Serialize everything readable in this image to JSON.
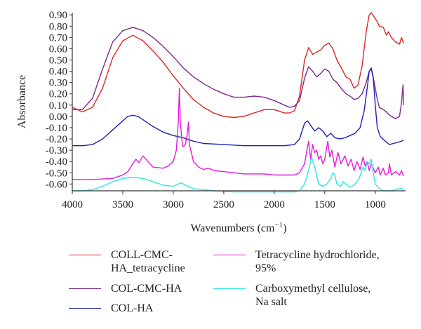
{
  "chart_data": {
    "type": "line",
    "title": "",
    "xlabel": "Wavenumbers (cm",
    "xlabel_sup": "−1",
    "xlabel_close": ")",
    "ylabel": "Absorbance",
    "xlim": [
      4000,
      700
    ],
    "x_reversed": true,
    "ylim": [
      -0.66,
      0.92
    ],
    "grid": false,
    "legend_position": "bottom",
    "x_ticks": [
      "4000",
      "3500",
      "3000",
      "2500",
      "2000",
      "1500",
      "1000"
    ],
    "x_tick_values": [
      4000,
      3500,
      3000,
      2500,
      2000,
      1500,
      1000
    ],
    "y_ticks": [
      "0.90",
      "0.80",
      "0.70",
      "0.60",
      "0.50",
      "0.40",
      "0.30",
      "0.20",
      "0.10",
      "0.00",
      "-0.10",
      "-0.20",
      "-0.30",
      "-0.40",
      "-0.50",
      "-0.60"
    ],
    "y_tick_values": [
      0.9,
      0.8,
      0.7,
      0.6,
      0.5,
      0.4,
      0.3,
      0.2,
      0.1,
      0.0,
      -0.1,
      -0.2,
      -0.3,
      -0.4,
      -0.5,
      -0.6
    ],
    "series": [
      {
        "name": "COLL-CMC-HA_tetracycline",
        "color": "#e02424",
        "points": [
          [
            4000,
            0.08
          ],
          [
            3900,
            0.04
          ],
          [
            3800,
            0.08
          ],
          [
            3700,
            0.25
          ],
          [
            3600,
            0.52
          ],
          [
            3500,
            0.67
          ],
          [
            3400,
            0.72
          ],
          [
            3300,
            0.67
          ],
          [
            3200,
            0.58
          ],
          [
            3100,
            0.48
          ],
          [
            3000,
            0.36
          ],
          [
            2900,
            0.25
          ],
          [
            2800,
            0.15
          ],
          [
            2700,
            0.08
          ],
          [
            2600,
            0.03
          ],
          [
            2500,
            0.0
          ],
          [
            2400,
            -0.01
          ],
          [
            2300,
            0.0
          ],
          [
            2200,
            0.03
          ],
          [
            2100,
            0.06
          ],
          [
            2000,
            0.06
          ],
          [
            1900,
            0.03
          ],
          [
            1850,
            0.03
          ],
          [
            1800,
            0.05
          ],
          [
            1750,
            0.18
          ],
          [
            1700,
            0.5
          ],
          [
            1660,
            0.61
          ],
          [
            1620,
            0.55
          ],
          [
            1580,
            0.57
          ],
          [
            1540,
            0.59
          ],
          [
            1500,
            0.63
          ],
          [
            1460,
            0.65
          ],
          [
            1420,
            0.6
          ],
          [
            1380,
            0.5
          ],
          [
            1330,
            0.42
          ],
          [
            1290,
            0.35
          ],
          [
            1250,
            0.33
          ],
          [
            1210,
            0.25
          ],
          [
            1170,
            0.28
          ],
          [
            1130,
            0.45
          ],
          [
            1090,
            0.75
          ],
          [
            1060,
            0.9
          ],
          [
            1040,
            0.92
          ],
          [
            1010,
            0.88
          ],
          [
            980,
            0.84
          ],
          [
            960,
            0.8
          ],
          [
            920,
            0.79
          ],
          [
            890,
            0.72
          ],
          [
            870,
            0.75
          ],
          [
            840,
            0.7
          ],
          [
            800,
            0.66
          ],
          [
            760,
            0.64
          ],
          [
            740,
            0.7
          ],
          [
            720,
            0.65
          ]
        ]
      },
      {
        "name": "COL-CMC-HA",
        "color": "#7b2a8a",
        "points": [
          [
            4000,
            0.06
          ],
          [
            3900,
            0.06
          ],
          [
            3800,
            0.16
          ],
          [
            3700,
            0.42
          ],
          [
            3600,
            0.66
          ],
          [
            3500,
            0.76
          ],
          [
            3400,
            0.79
          ],
          [
            3300,
            0.76
          ],
          [
            3200,
            0.7
          ],
          [
            3100,
            0.62
          ],
          [
            3000,
            0.53
          ],
          [
            2900,
            0.43
          ],
          [
            2800,
            0.35
          ],
          [
            2700,
            0.29
          ],
          [
            2600,
            0.24
          ],
          [
            2500,
            0.2
          ],
          [
            2400,
            0.17
          ],
          [
            2300,
            0.17
          ],
          [
            2200,
            0.18
          ],
          [
            2100,
            0.17
          ],
          [
            2000,
            0.14
          ],
          [
            1900,
            0.1
          ],
          [
            1850,
            0.08
          ],
          [
            1800,
            0.09
          ],
          [
            1750,
            0.14
          ],
          [
            1700,
            0.34
          ],
          [
            1660,
            0.44
          ],
          [
            1620,
            0.4
          ],
          [
            1580,
            0.35
          ],
          [
            1540,
            0.38
          ],
          [
            1500,
            0.42
          ],
          [
            1460,
            0.4
          ],
          [
            1420,
            0.33
          ],
          [
            1380,
            0.3
          ],
          [
            1330,
            0.24
          ],
          [
            1290,
            0.2
          ],
          [
            1250,
            0.18
          ],
          [
            1210,
            0.15
          ],
          [
            1170,
            0.16
          ],
          [
            1130,
            0.2
          ],
          [
            1090,
            0.3
          ],
          [
            1060,
            0.4
          ],
          [
            1040,
            0.42
          ],
          [
            1010,
            0.3
          ],
          [
            980,
            0.15
          ],
          [
            960,
            0.08
          ],
          [
            920,
            0.06
          ],
          [
            890,
            0.04
          ],
          [
            870,
            0.02
          ],
          [
            840,
            0.0
          ],
          [
            800,
            -0.02
          ],
          [
            760,
            0.0
          ],
          [
            740,
            0.12
          ],
          [
            725,
            0.28
          ],
          [
            720,
            0.1
          ]
        ]
      },
      {
        "name": "COL-HA",
        "color": "#1c22b8",
        "points": [
          [
            4000,
            -0.26
          ],
          [
            3900,
            -0.26
          ],
          [
            3800,
            -0.25
          ],
          [
            3700,
            -0.2
          ],
          [
            3600,
            -0.12
          ],
          [
            3500,
            -0.04
          ],
          [
            3450,
            0.0
          ],
          [
            3400,
            0.01
          ],
          [
            3350,
            0.0
          ],
          [
            3300,
            -0.03
          ],
          [
            3200,
            -0.09
          ],
          [
            3100,
            -0.14
          ],
          [
            3000,
            -0.17
          ],
          [
            2900,
            -0.19
          ],
          [
            2800,
            -0.22
          ],
          [
            2700,
            -0.24
          ],
          [
            2500,
            -0.25
          ],
          [
            2300,
            -0.26
          ],
          [
            2100,
            -0.26
          ],
          [
            1900,
            -0.26
          ],
          [
            1800,
            -0.25
          ],
          [
            1750,
            -0.2
          ],
          [
            1700,
            -0.06
          ],
          [
            1670,
            -0.04
          ],
          [
            1640,
            -0.08
          ],
          [
            1600,
            -0.13
          ],
          [
            1560,
            -0.1
          ],
          [
            1520,
            -0.13
          ],
          [
            1480,
            -0.18
          ],
          [
            1440,
            -0.15
          ],
          [
            1400,
            -0.19
          ],
          [
            1350,
            -0.2
          ],
          [
            1300,
            -0.19
          ],
          [
            1250,
            -0.17
          ],
          [
            1200,
            -0.15
          ],
          [
            1150,
            -0.1
          ],
          [
            1110,
            0.05
          ],
          [
            1080,
            0.25
          ],
          [
            1060,
            0.4
          ],
          [
            1040,
            0.43
          ],
          [
            1020,
            0.35
          ],
          [
            1000,
            0.1
          ],
          [
            980,
            -0.1
          ],
          [
            950,
            -0.18
          ],
          [
            900,
            -0.22
          ],
          [
            860,
            -0.25
          ],
          [
            820,
            -0.24
          ],
          [
            780,
            -0.23
          ],
          [
            740,
            -0.22
          ],
          [
            720,
            -0.21
          ]
        ]
      },
      {
        "name": "Tetracycline hydrochloride, 95%",
        "color": "#e619dc",
        "points": [
          [
            4000,
            -0.56
          ],
          [
            3800,
            -0.56
          ],
          [
            3600,
            -0.55
          ],
          [
            3500,
            -0.52
          ],
          [
            3450,
            -0.49
          ],
          [
            3400,
            -0.42
          ],
          [
            3370,
            -0.38
          ],
          [
            3340,
            -0.41
          ],
          [
            3300,
            -0.35
          ],
          [
            3250,
            -0.4
          ],
          [
            3200,
            -0.45
          ],
          [
            3100,
            -0.46
          ],
          [
            3050,
            -0.44
          ],
          [
            3000,
            -0.4
          ],
          [
            2970,
            -0.3
          ],
          [
            2950,
            -0.05
          ],
          [
            2940,
            0.25
          ],
          [
            2930,
            -0.05
          ],
          [
            2910,
            -0.25
          ],
          [
            2900,
            -0.27
          ],
          [
            2880,
            -0.25
          ],
          [
            2860,
            -0.15
          ],
          [
            2850,
            -0.05
          ],
          [
            2840,
            -0.25
          ],
          [
            2800,
            -0.4
          ],
          [
            2750,
            -0.45
          ],
          [
            2700,
            -0.47
          ],
          [
            2650,
            -0.46
          ],
          [
            2600,
            -0.48
          ],
          [
            2500,
            -0.49
          ],
          [
            2400,
            -0.5
          ],
          [
            2300,
            -0.51
          ],
          [
            2200,
            -0.51
          ],
          [
            2100,
            -0.51
          ],
          [
            2000,
            -0.52
          ],
          [
            1900,
            -0.52
          ],
          [
            1800,
            -0.52
          ],
          [
            1750,
            -0.5
          ],
          [
            1700,
            -0.42
          ],
          [
            1680,
            -0.32
          ],
          [
            1660,
            -0.22
          ],
          [
            1640,
            -0.38
          ],
          [
            1620,
            -0.25
          ],
          [
            1600,
            -0.32
          ],
          [
            1580,
            -0.3
          ],
          [
            1560,
            -0.38
          ],
          [
            1540,
            -0.35
          ],
          [
            1520,
            -0.42
          ],
          [
            1500,
            -0.38
          ],
          [
            1470,
            -0.22
          ],
          [
            1450,
            -0.36
          ],
          [
            1430,
            -0.3
          ],
          [
            1400,
            -0.45
          ],
          [
            1370,
            -0.32
          ],
          [
            1340,
            -0.42
          ],
          [
            1300,
            -0.35
          ],
          [
            1270,
            -0.44
          ],
          [
            1240,
            -0.38
          ],
          [
            1210,
            -0.48
          ],
          [
            1180,
            -0.4
          ],
          [
            1150,
            -0.47
          ],
          [
            1120,
            -0.36
          ],
          [
            1100,
            -0.44
          ],
          [
            1080,
            -0.4
          ],
          [
            1060,
            -0.48
          ],
          [
            1040,
            -0.42
          ],
          [
            1000,
            -0.5
          ],
          [
            970,
            -0.45
          ],
          [
            950,
            -0.52
          ],
          [
            920,
            -0.46
          ],
          [
            900,
            -0.52
          ],
          [
            870,
            -0.5
          ],
          [
            860,
            -0.42
          ],
          [
            840,
            -0.52
          ],
          [
            800,
            -0.49
          ],
          [
            760,
            -0.52
          ],
          [
            740,
            -0.48
          ],
          [
            720,
            -0.53
          ]
        ]
      },
      {
        "name": "Carboxymethyl cellulose, Na salt",
        "color": "#2ee6e6",
        "points": [
          [
            4000,
            -0.66
          ],
          [
            3900,
            -0.66
          ],
          [
            3800,
            -0.65
          ],
          [
            3700,
            -0.62
          ],
          [
            3600,
            -0.58
          ],
          [
            3500,
            -0.55
          ],
          [
            3450,
            -0.545
          ],
          [
            3400,
            -0.54
          ],
          [
            3350,
            -0.545
          ],
          [
            3300,
            -0.55
          ],
          [
            3200,
            -0.58
          ],
          [
            3100,
            -0.61
          ],
          [
            3000,
            -0.62
          ],
          [
            2950,
            -0.6
          ],
          [
            2920,
            -0.59
          ],
          [
            2880,
            -0.61
          ],
          [
            2800,
            -0.64
          ],
          [
            2600,
            -0.66
          ],
          [
            2400,
            -0.67
          ],
          [
            2200,
            -0.67
          ],
          [
            2000,
            -0.67
          ],
          [
            1800,
            -0.67
          ],
          [
            1750,
            -0.66
          ],
          [
            1700,
            -0.6
          ],
          [
            1660,
            -0.48
          ],
          [
            1630,
            -0.36
          ],
          [
            1600,
            -0.45
          ],
          [
            1560,
            -0.6
          ],
          [
            1520,
            -0.62
          ],
          [
            1480,
            -0.6
          ],
          [
            1440,
            -0.55
          ],
          [
            1420,
            -0.5
          ],
          [
            1400,
            -0.52
          ],
          [
            1380,
            -0.6
          ],
          [
            1340,
            -0.62
          ],
          [
            1320,
            -0.58
          ],
          [
            1290,
            -0.6
          ],
          [
            1250,
            -0.63
          ],
          [
            1200,
            -0.6
          ],
          [
            1160,
            -0.55
          ],
          [
            1120,
            -0.45
          ],
          [
            1100,
            -0.48
          ],
          [
            1080,
            -0.4
          ],
          [
            1060,
            -0.42
          ],
          [
            1040,
            -0.38
          ],
          [
            1020,
            -0.5
          ],
          [
            1000,
            -0.6
          ],
          [
            960,
            -0.64
          ],
          [
            920,
            -0.66
          ],
          [
            880,
            -0.66
          ],
          [
            840,
            -0.66
          ],
          [
            800,
            -0.65
          ],
          [
            760,
            -0.64
          ],
          [
            720,
            -0.64
          ]
        ]
      }
    ]
  },
  "legend": {
    "items": [
      {
        "label": "COLL-CMC-\nHA_tetracycline",
        "color": "#e02424"
      },
      {
        "label": "Tetracycline hydrochloride,\n95%",
        "color": "#e619dc"
      },
      {
        "label": "COL-CMC-HA",
        "color": "#7b2a8a"
      },
      {
        "label": "Carboxymethyl cellulose,\nNa salt",
        "color": "#2ee6e6"
      },
      {
        "label": "COL-HA",
        "color": "#1c22b8"
      }
    ]
  }
}
